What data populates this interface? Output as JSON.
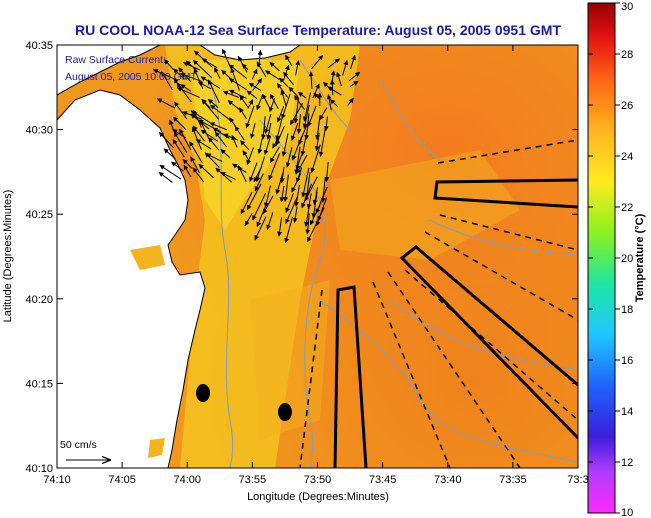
{
  "chart_data": {
    "type": "heatmap",
    "title": "RU COOL  NOAA-12  Sea Surface Temperature:  August 05, 2005 0951 GMT",
    "xlabel": "Longitude (Degrees:Minutes)",
    "ylabel": "Latitude (Degrees:Minutes)",
    "x_ticks": [
      "74:10",
      "74:05",
      "74:00",
      "73:55",
      "73:50",
      "73:45",
      "73:40",
      "73:35",
      "73:3"
    ],
    "y_ticks": [
      "40:10",
      "40:15",
      "40:20",
      "40:25",
      "40:30",
      "40:35"
    ],
    "xlim_minutes_west": [
      10,
      30
    ],
    "ylim_minutes_north": [
      10,
      35
    ],
    "current_annotation": [
      "Raw Surface Current:",
      "August 05, 2005 10:00 GMT"
    ],
    "scale_arrow_label": "50 cm/s",
    "colorbar": {
      "label": "Temperature (°C)",
      "range": [
        10,
        30
      ],
      "ticks": [
        "10",
        "12",
        "14",
        "16",
        "18",
        "20",
        "22",
        "24",
        "26",
        "28",
        "30"
      ]
    },
    "sst_range_shown_c": [
      22,
      26
    ],
    "colors": {
      "land": "#ffffff",
      "ocean_warm": "#f08c1e",
      "ocean_cool": "#f5c81e",
      "coast": "#000000",
      "bathymetry": "#8c9bb4",
      "title": "#1a1aa8"
    }
  }
}
